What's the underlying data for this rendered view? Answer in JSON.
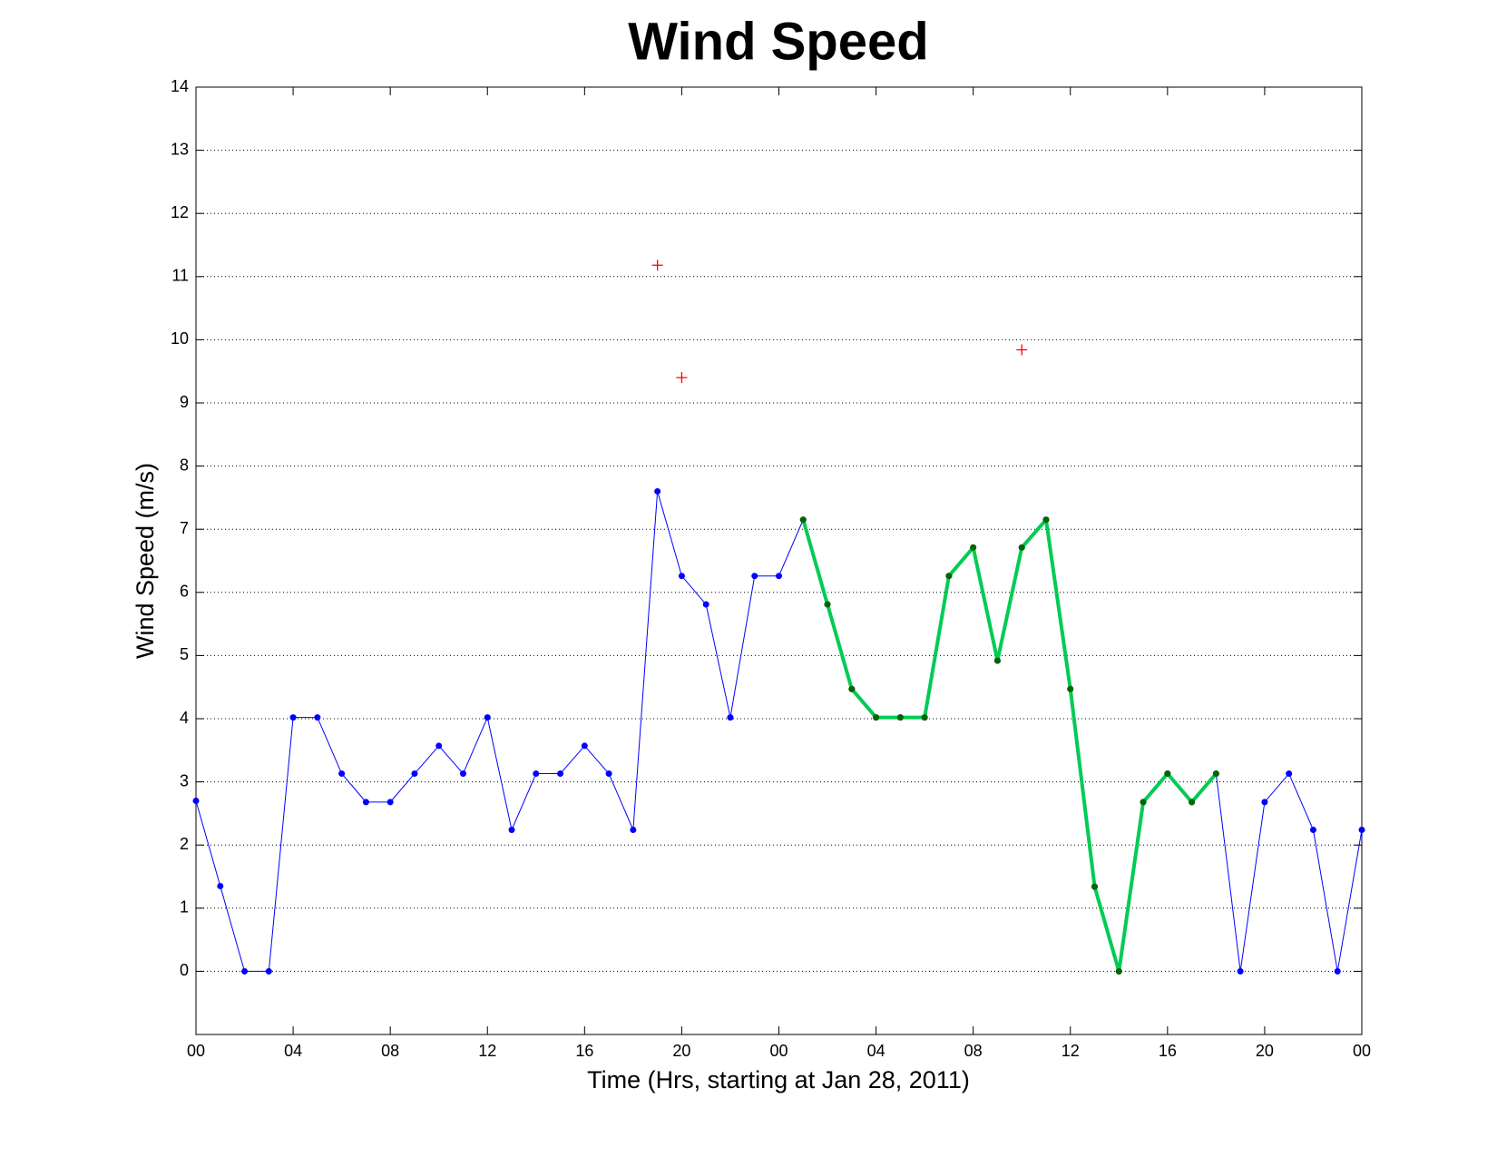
{
  "chart_data": {
    "type": "line",
    "title": "Wind Speed",
    "xlabel": "Time (Hrs, starting at Jan 28, 2011)",
    "ylabel": "Wind Speed (m/s)",
    "xlim": [
      0,
      48
    ],
    "ylim": [
      -1,
      14
    ],
    "xticks": [
      {
        "value": 0,
        "label": "00"
      },
      {
        "value": 4,
        "label": "04"
      },
      {
        "value": 8,
        "label": "08"
      },
      {
        "value": 12,
        "label": "12"
      },
      {
        "value": 16,
        "label": "16"
      },
      {
        "value": 20,
        "label": "20"
      },
      {
        "value": 24,
        "label": "00"
      },
      {
        "value": 28,
        "label": "04"
      },
      {
        "value": 32,
        "label": "08"
      },
      {
        "value": 36,
        "label": "12"
      },
      {
        "value": 40,
        "label": "16"
      },
      {
        "value": 44,
        "label": "20"
      },
      {
        "value": 48,
        "label": "00"
      }
    ],
    "yticks": [
      0,
      1,
      2,
      3,
      4,
      5,
      6,
      7,
      8,
      9,
      10,
      11,
      12,
      13,
      14
    ],
    "grid": true,
    "series": [
      {
        "color": "#0000ff",
        "marker_color": "#0000ff",
        "linewidth": 1,
        "marker": "dot",
        "x": [
          0,
          1,
          2,
          3,
          4,
          5,
          6,
          7,
          8,
          9,
          10,
          11,
          12,
          13,
          14,
          15,
          16,
          17,
          18,
          19,
          20,
          21,
          22,
          23,
          24,
          25,
          26,
          27,
          28,
          29,
          30,
          31,
          32,
          33,
          34,
          35,
          36,
          37,
          38,
          39,
          40,
          41,
          42,
          43,
          44,
          45,
          46,
          47,
          48
        ],
        "values": [
          2.7,
          1.35,
          0,
          0,
          4.02,
          4.02,
          3.13,
          2.68,
          2.68,
          3.13,
          3.57,
          3.13,
          4.02,
          2.24,
          3.13,
          3.13,
          3.57,
          3.13,
          2.24,
          7.6,
          6.26,
          5.81,
          4.02,
          6.26,
          6.26,
          7.15,
          5.81,
          4.47,
          4.02,
          4.02,
          4.02,
          6.26,
          6.71,
          4.92,
          6.71,
          7.15,
          4.47,
          1.34,
          0,
          2.68,
          3.13,
          2.68,
          3.13,
          0,
          2.68,
          3.13,
          2.24,
          0,
          2.24
        ]
      },
      {
        "color": "#00cc55",
        "marker_color": "#006600",
        "linewidth": 4,
        "marker": "dot",
        "x": [
          25,
          26,
          27,
          28,
          29,
          30,
          31,
          32,
          33,
          34,
          35,
          36,
          37,
          38,
          39,
          40,
          41,
          42
        ],
        "values": [
          7.15,
          5.81,
          4.47,
          4.02,
          4.02,
          4.02,
          6.26,
          6.71,
          4.92,
          6.71,
          7.15,
          4.47,
          1.34,
          0,
          2.68,
          3.13,
          2.68,
          3.13
        ]
      },
      {
        "color": "#ff0000",
        "marker_color": "#ff0000",
        "linewidth": 0,
        "marker": "plus",
        "x": [
          19,
          20,
          34
        ],
        "values": [
          11.18,
          9.4,
          9.84
        ]
      }
    ]
  }
}
